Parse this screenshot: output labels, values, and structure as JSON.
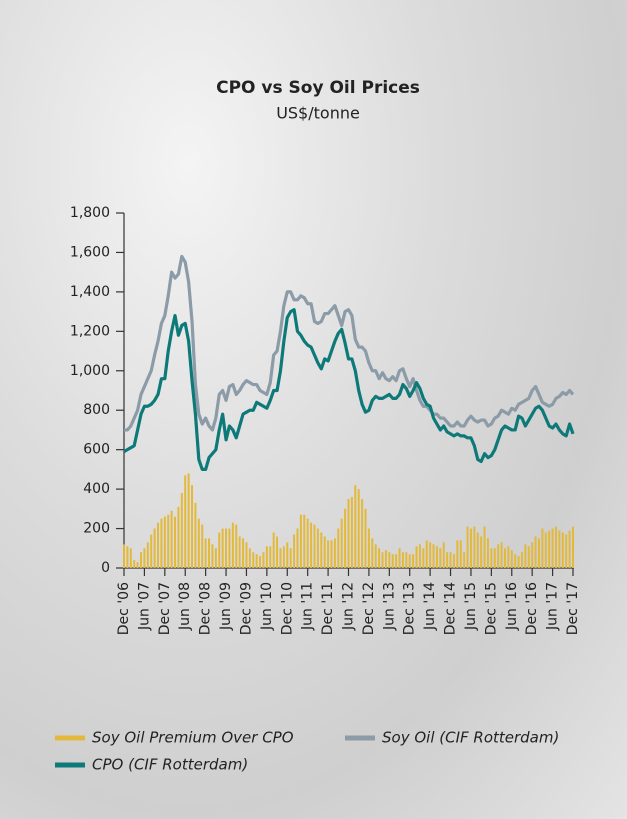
{
  "chart_data": {
    "type": "line",
    "title": "CPO vs Soy Oil Prices",
    "subtitle": "US$/tonne",
    "categories": [
      "Dec '06",
      null,
      null,
      null,
      null,
      null,
      "Jun '07",
      null,
      null,
      null,
      null,
      null,
      "Dec '07",
      null,
      null,
      null,
      null,
      null,
      "Jun '08",
      null,
      null,
      null,
      null,
      null,
      "Dec '08",
      null,
      null,
      null,
      null,
      null,
      "Jun '09",
      null,
      null,
      null,
      null,
      null,
      "Dec '09",
      null,
      null,
      null,
      null,
      null,
      "Jun '10",
      null,
      null,
      null,
      null,
      null,
      "Dec '10",
      null,
      null,
      null,
      null,
      null,
      "Jun '11",
      null,
      null,
      null,
      null,
      null,
      "Dec '11",
      null,
      null,
      null,
      null,
      null,
      "Jun '12",
      null,
      null,
      null,
      null,
      null,
      "Dec '12",
      null,
      null,
      null,
      null,
      null,
      "Jun '13",
      null,
      null,
      null,
      null,
      null,
      "Dec '13",
      null,
      null,
      null,
      null,
      null,
      "Jun '14",
      null,
      null,
      null,
      null,
      null,
      "Dec '14",
      null,
      null,
      null,
      null,
      null,
      "Jun '15",
      null,
      null,
      null,
      null,
      null,
      "Dec '15",
      null,
      null,
      null,
      null,
      null,
      "Jun '16",
      null,
      null,
      null,
      null,
      null,
      "Dec '16",
      null,
      null,
      null,
      null,
      null,
      "Jun '17",
      null,
      null,
      null,
      null,
      null,
      "Dec '17"
    ],
    "series": [
      {
        "name": "Soy Oil Premium Over CPO",
        "type": "bar",
        "color": "#e2b93b",
        "values": [
          120,
          110,
          100,
          40,
          30,
          80,
          100,
          130,
          170,
          200,
          230,
          250,
          260,
          270,
          290,
          260,
          310,
          380,
          470,
          480,
          420,
          330,
          250,
          220,
          150,
          150,
          120,
          100,
          180,
          200,
          200,
          200,
          230,
          220,
          160,
          150,
          130,
          100,
          80,
          70,
          60,
          80,
          110,
          110,
          180,
          160,
          100,
          110,
          130,
          100,
          170,
          200,
          270,
          270,
          250,
          230,
          220,
          200,
          180,
          160,
          140,
          140,
          150,
          200,
          250,
          300,
          350,
          360,
          420,
          400,
          350,
          300,
          200,
          150,
          120,
          100,
          80,
          90,
          80,
          70,
          70,
          100,
          80,
          80,
          70,
          70,
          110,
          120,
          100,
          140,
          130,
          120,
          110,
          100,
          130,
          80,
          80,
          70,
          140,
          140,
          80,
          210,
          200,
          210,
          180,
          160,
          210,
          150,
          100,
          100,
          120,
          130,
          100,
          110,
          90,
          70,
          60,
          80,
          120,
          110,
          130,
          160,
          150,
          200,
          180,
          190,
          200,
          210,
          190,
          180,
          170,
          190,
          210
        ]
      },
      {
        "name": "Soy Oil (CIF Rotterdam)",
        "type": "line",
        "color": "#8b9ba7",
        "values": [
          700,
          700,
          720,
          760,
          800,
          880,
          920,
          960,
          1000,
          1080,
          1150,
          1240,
          1280,
          1380,
          1500,
          1470,
          1490,
          1580,
          1550,
          1450,
          1250,
          930,
          780,
          730,
          760,
          720,
          700,
          760,
          880,
          900,
          850,
          920,
          930,
          880,
          900,
          930,
          950,
          940,
          930,
          930,
          900,
          890,
          880,
          940,
          1080,
          1100,
          1200,
          1330,
          1400,
          1400,
          1360,
          1360,
          1380,
          1370,
          1340,
          1340,
          1250,
          1240,
          1250,
          1290,
          1290,
          1310,
          1330,
          1280,
          1230,
          1300,
          1310,
          1280,
          1160,
          1120,
          1120,
          1100,
          1040,
          1000,
          1000,
          960,
          990,
          960,
          950,
          970,
          950,
          1000,
          1010,
          960,
          920,
          960,
          900,
          850,
          820,
          820,
          800,
          780,
          780,
          760,
          760,
          740,
          720,
          720,
          740,
          720,
          720,
          750,
          770,
          750,
          740,
          750,
          750,
          720,
          730,
          760,
          770,
          800,
          790,
          780,
          810,
          800,
          830,
          840,
          850,
          860,
          900,
          920,
          880,
          840,
          830,
          820,
          830,
          860,
          870,
          890,
          880,
          900,
          880
        ]
      },
      {
        "name": "CPO (CIF Rotterdam)",
        "type": "line",
        "color": "#0d7a79",
        "values": [
          590,
          600,
          610,
          620,
          700,
          780,
          820,
          820,
          830,
          850,
          880,
          960,
          960,
          1100,
          1200,
          1280,
          1180,
          1230,
          1240,
          1150,
          950,
          780,
          550,
          500,
          500,
          560,
          580,
          600,
          700,
          780,
          650,
          720,
          700,
          660,
          720,
          780,
          790,
          800,
          800,
          840,
          830,
          820,
          810,
          850,
          900,
          900,
          1000,
          1150,
          1270,
          1300,
          1310,
          1200,
          1180,
          1150,
          1130,
          1120,
          1080,
          1040,
          1010,
          1060,
          1050,
          1100,
          1150,
          1190,
          1210,
          1140,
          1060,
          1060,
          1000,
          900,
          830,
          790,
          800,
          850,
          870,
          860,
          860,
          870,
          880,
          860,
          860,
          880,
          930,
          910,
          870,
          900,
          940,
          910,
          860,
          830,
          820,
          760,
          730,
          700,
          720,
          690,
          680,
          670,
          680,
          670,
          670,
          660,
          660,
          620,
          550,
          540,
          580,
          560,
          570,
          600,
          650,
          700,
          720,
          710,
          700,
          700,
          770,
          760,
          720,
          750,
          780,
          810,
          820,
          800,
          760,
          720,
          710,
          730,
          700,
          680,
          670,
          730,
          680
        ]
      }
    ],
    "ylim": [
      0,
      1800
    ],
    "yticks": [
      0,
      200,
      400,
      600,
      800,
      {
        "value": 1000,
        "label": "1,000"
      },
      {
        "value": 1200,
        "label": "1,200"
      },
      {
        "value": 1400,
        "label": "1,400"
      },
      {
        "value": 1600,
        "label": "1,600"
      },
      {
        "value": 1800,
        "label": "1,800"
      }
    ],
    "grid": false,
    "legend": "bottom"
  }
}
